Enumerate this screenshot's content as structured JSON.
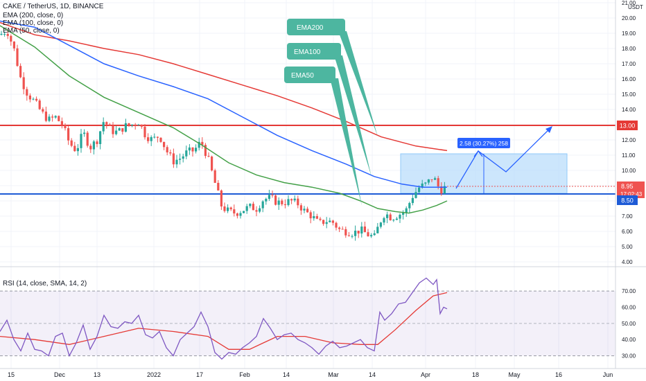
{
  "header": {
    "symbol_line": "CAKE / TetherUS, 1D, BINANCE",
    "ema200_label": "EMA (200, close, 0)",
    "ema100_label": "EMA (100, close, 0)",
    "ema50_label": "EMA (50, close, 0)",
    "rsi_label": "RSI (14, close, SMA, 14, 2)",
    "currency": "USDT"
  },
  "colors": {
    "up": "#26a69a",
    "down": "#ef5350",
    "ema50": "#43a047",
    "ema100": "#2962ff",
    "ema200": "#e53935",
    "rsi": "#7e57c2",
    "rsi_sma": "#e53935",
    "resistance": "#e53935",
    "support": "#1e5bd6",
    "callout": "#4db6a0",
    "range_box": "#bbdefb",
    "range_label": "#2962ff",
    "last_price": "#ef5350"
  },
  "chart_data": [
    {
      "type": "candlestick",
      "x_tick_labels": [
        "15",
        "Dec",
        "13",
        "2022",
        "17",
        "Feb",
        "14",
        "Mar",
        "14",
        "Apr",
        "18",
        "May",
        "16",
        "Jun"
      ],
      "y_tick_labels": [
        "4.00",
        "5.00",
        "6.00",
        "7.00",
        "8.00",
        "9.00",
        "10.00",
        "11.00",
        "12.00",
        "13.00",
        "14.00",
        "15.00",
        "16.00",
        "17.00",
        "18.00",
        "19.00",
        "20.00",
        "21.00"
      ],
      "ylim": [
        4,
        21
      ],
      "price_path": [
        [
          0,
          18.9
        ],
        [
          10,
          19.2
        ],
        [
          20,
          18.0
        ],
        [
          30,
          16.0
        ],
        [
          40,
          15.0
        ],
        [
          50,
          14.5
        ],
        [
          60,
          13.8
        ],
        [
          70,
          13.3
        ],
        [
          80,
          13.5
        ],
        [
          90,
          13.0
        ],
        [
          100,
          11.8
        ],
        [
          110,
          11.3
        ],
        [
          120,
          12.5
        ],
        [
          130,
          11.5
        ],
        [
          140,
          12.0
        ],
        [
          150,
          13.3
        ],
        [
          160,
          12.6
        ],
        [
          170,
          12.5
        ],
        [
          180,
          12.9
        ],
        [
          190,
          13.0
        ],
        [
          200,
          13.2
        ],
        [
          210,
          12.3
        ],
        [
          220,
          12.0
        ],
        [
          230,
          12.3
        ],
        [
          240,
          11.3
        ],
        [
          250,
          10.6
        ],
        [
          260,
          10.8
        ],
        [
          270,
          11.2
        ],
        [
          280,
          11.3
        ],
        [
          290,
          11.9
        ],
        [
          300,
          10.8
        ],
        [
          310,
          9.2
        ],
        [
          320,
          7.6
        ],
        [
          330,
          7.3
        ],
        [
          340,
          7.2
        ],
        [
          350,
          7.4
        ],
        [
          360,
          7.6
        ],
        [
          370,
          7.5
        ],
        [
          380,
          8.1
        ],
        [
          390,
          8.2
        ],
        [
          400,
          7.9
        ],
        [
          410,
          7.9
        ],
        [
          420,
          8.0
        ],
        [
          430,
          7.8
        ],
        [
          440,
          7.3
        ],
        [
          450,
          7.0
        ],
        [
          460,
          6.5
        ],
        [
          470,
          6.7
        ],
        [
          480,
          6.6
        ],
        [
          490,
          6.1
        ],
        [
          500,
          6.0
        ],
        [
          510,
          5.9
        ],
        [
          520,
          6.1
        ],
        [
          530,
          5.8
        ],
        [
          540,
          5.6
        ],
        [
          548,
          6.6
        ],
        [
          555,
          7.2
        ],
        [
          565,
          6.9
        ],
        [
          575,
          7.1
        ],
        [
          585,
          7.3
        ],
        [
          595,
          8.3
        ],
        [
          605,
          8.9
        ],
        [
          615,
          9.1
        ],
        [
          625,
          9.6
        ],
        [
          635,
          8.7
        ],
        [
          645,
          8.95
        ]
      ],
      "last_price": "8.95",
      "countdown": "17:02:43",
      "resistance_level": "13.00",
      "support_level": "8.50",
      "callouts": [
        "EMA200",
        "EMA100",
        "EMA50"
      ],
      "measure_label": "2.58 (30.27%) 258",
      "ema50_path": [
        [
          0,
          19.5
        ],
        [
          50,
          18.1
        ],
        [
          100,
          16.2
        ],
        [
          150,
          14.8
        ],
        [
          200,
          13.8
        ],
        [
          250,
          12.8
        ],
        [
          290,
          11.7
        ],
        [
          330,
          10.5
        ],
        [
          370,
          9.7
        ],
        [
          410,
          9.2
        ],
        [
          450,
          8.9
        ],
        [
          490,
          8.5
        ],
        [
          520,
          8.0
        ],
        [
          545,
          7.5
        ],
        [
          570,
          7.3
        ],
        [
          590,
          7.2
        ],
        [
          610,
          7.4
        ],
        [
          630,
          7.7
        ],
        [
          645,
          8.0
        ]
      ],
      "ema100_path": [
        [
          0,
          19.8
        ],
        [
          50,
          19.4
        ],
        [
          100,
          18.2
        ],
        [
          150,
          17.0
        ],
        [
          200,
          16.2
        ],
        [
          250,
          15.5
        ],
        [
          300,
          14.7
        ],
        [
          350,
          13.5
        ],
        [
          400,
          12.3
        ],
        [
          450,
          11.3
        ],
        [
          500,
          10.4
        ],
        [
          540,
          9.6
        ],
        [
          580,
          9.1
        ],
        [
          610,
          8.9
        ],
        [
          645,
          8.9
        ]
      ],
      "ema200_path": [
        [
          0,
          19.7
        ],
        [
          50,
          18.9
        ],
        [
          100,
          18.5
        ],
        [
          150,
          18.0
        ],
        [
          200,
          17.6
        ],
        [
          250,
          17.0
        ],
        [
          300,
          16.3
        ],
        [
          350,
          15.6
        ],
        [
          400,
          14.9
        ],
        [
          450,
          14.1
        ],
        [
          500,
          13.2
        ],
        [
          550,
          12.2
        ],
        [
          600,
          11.6
        ],
        [
          645,
          11.3
        ]
      ]
    },
    {
      "type": "line",
      "title": "RSI (14, close, SMA, 14, 2)",
      "y_tick_labels": [
        "30.00",
        "40.00",
        "50.00",
        "60.00",
        "70.00"
      ],
      "ylim": [
        23,
        82
      ],
      "band": [
        30,
        70
      ],
      "midline": 50,
      "rsi_path": [
        [
          0,
          45
        ],
        [
          10,
          52
        ],
        [
          20,
          40
        ],
        [
          30,
          33
        ],
        [
          40,
          44
        ],
        [
          50,
          34
        ],
        [
          60,
          33
        ],
        [
          70,
          30
        ],
        [
          80,
          42
        ],
        [
          90,
          44
        ],
        [
          100,
          30
        ],
        [
          110,
          38
        ],
        [
          120,
          49
        ],
        [
          130,
          34
        ],
        [
          140,
          42
        ],
        [
          150,
          55
        ],
        [
          160,
          48
        ],
        [
          170,
          47
        ],
        [
          180,
          51
        ],
        [
          190,
          50
        ],
        [
          200,
          55
        ],
        [
          210,
          43
        ],
        [
          220,
          41
        ],
        [
          230,
          45
        ],
        [
          240,
          35
        ],
        [
          250,
          30
        ],
        [
          260,
          40
        ],
        [
          270,
          44
        ],
        [
          280,
          48
        ],
        [
          290,
          57
        ],
        [
          300,
          48
        ],
        [
          310,
          32
        ],
        [
          320,
          28
        ],
        [
          330,
          32
        ],
        [
          340,
          31
        ],
        [
          350,
          35
        ],
        [
          360,
          38
        ],
        [
          370,
          42
        ],
        [
          380,
          53
        ],
        [
          390,
          47
        ],
        [
          400,
          40
        ],
        [
          410,
          43
        ],
        [
          420,
          44
        ],
        [
          430,
          40
        ],
        [
          440,
          38
        ],
        [
          450,
          35
        ],
        [
          460,
          31
        ],
        [
          470,
          36
        ],
        [
          480,
          39
        ],
        [
          490,
          35
        ],
        [
          500,
          36
        ],
        [
          510,
          38
        ],
        [
          520,
          40
        ],
        [
          530,
          35
        ],
        [
          540,
          33
        ],
        [
          548,
          57
        ],
        [
          555,
          52
        ],
        [
          565,
          56
        ],
        [
          575,
          62
        ],
        [
          585,
          63
        ],
        [
          595,
          69
        ],
        [
          605,
          75
        ],
        [
          615,
          78
        ],
        [
          625,
          74
        ],
        [
          630,
          77
        ],
        [
          635,
          56
        ],
        [
          640,
          60
        ],
        [
          645,
          59
        ]
      ],
      "rsi_sma_path": [
        [
          0,
          42
        ],
        [
          50,
          40
        ],
        [
          100,
          37
        ],
        [
          150,
          42
        ],
        [
          200,
          47
        ],
        [
          250,
          45
        ],
        [
          300,
          42
        ],
        [
          330,
          34
        ],
        [
          360,
          34
        ],
        [
          400,
          42
        ],
        [
          440,
          42
        ],
        [
          480,
          38
        ],
        [
          520,
          37
        ],
        [
          545,
          37
        ],
        [
          570,
          46
        ],
        [
          600,
          58
        ],
        [
          625,
          67
        ],
        [
          645,
          69
        ]
      ]
    }
  ]
}
